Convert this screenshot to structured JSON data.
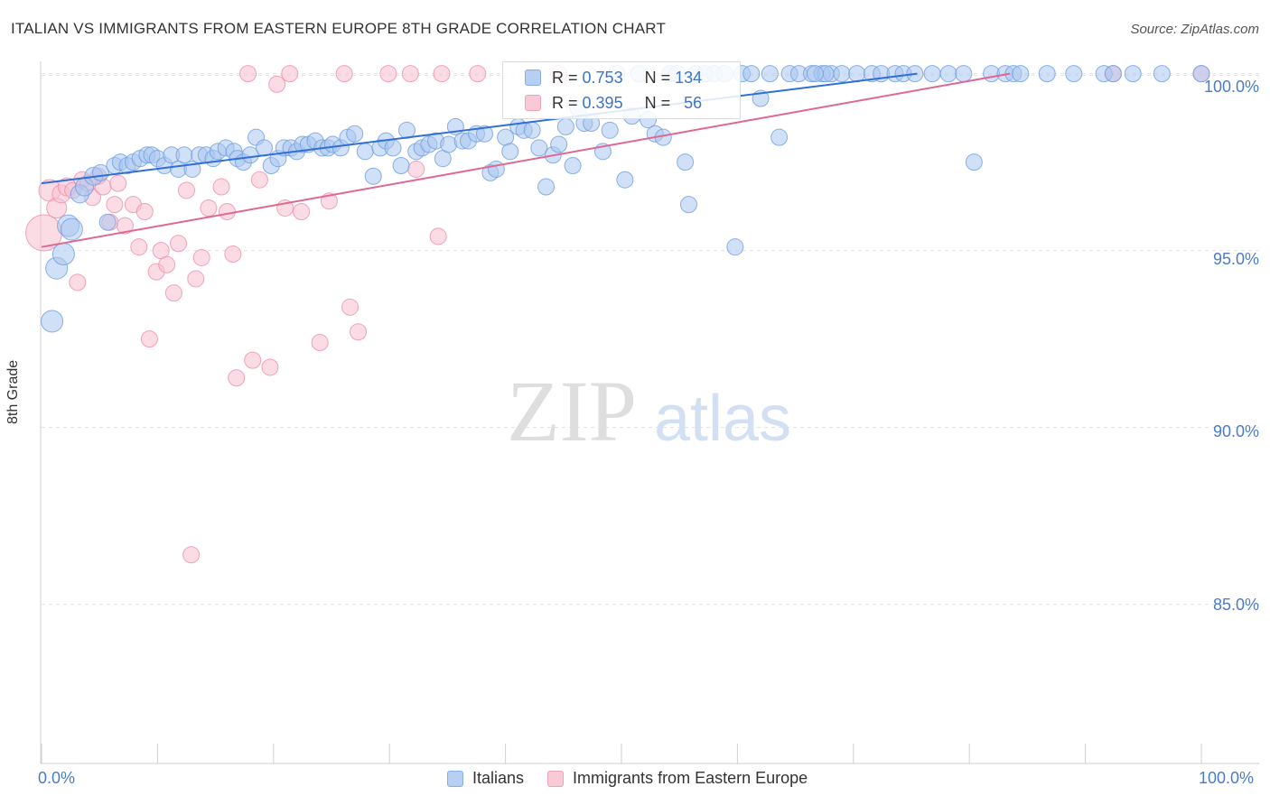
{
  "header": {
    "title": "ITALIAN VS IMMIGRANTS FROM EASTERN EUROPE 8TH GRADE CORRELATION CHART",
    "source": "Source: ZipAtlas.com"
  },
  "watermark": {
    "zip": "ZIP",
    "atlas": "atlas"
  },
  "stats": {
    "r_label": "R =",
    "n_label": "N =",
    "italians": {
      "r": "0.753",
      "n": "134"
    },
    "eastern_europe": {
      "r": "0.395",
      "n": "56"
    }
  },
  "colors": {
    "blue_fill": "#a9c6f0",
    "blue_stroke": "#6f9de0",
    "blue_line": "#2f6fd6",
    "pink_fill": "#f7bfd0",
    "pink_stroke": "#ec8fac",
    "pink_line": "#e0678f",
    "tick_text": "#4a7cc9"
  },
  "chart_data": {
    "type": "scatter",
    "title": "ITALIAN VS IMMIGRANTS FROM EASTERN EUROPE 8TH GRADE CORRELATION CHART",
    "xlabel": "",
    "ylabel": "8th Grade",
    "xlim": [
      0,
      100
    ],
    "ylim": [
      80.5,
      100.5
    ],
    "x_tick_labels": [
      "0.0%",
      "100.0%"
    ],
    "y_ticks": [
      {
        "value": 100,
        "label": "100.0%"
      },
      {
        "value": 95,
        "label": "95.0%"
      },
      {
        "value": 90,
        "label": "90.0%"
      },
      {
        "value": 85,
        "label": "85.0%"
      }
    ],
    "grid": true,
    "legend_position": "bottom",
    "series": [
      {
        "name": "Italians",
        "color": "blue",
        "trend": {
          "x": [
            0,
            75.5
          ],
          "y": [
            96.9,
            100.0
          ]
        },
        "points": [
          {
            "x": 0.9,
            "y": 93.0,
            "s": 12
          },
          {
            "x": 1.3,
            "y": 94.5,
            "s": 12
          },
          {
            "x": 1.9,
            "y": 94.9,
            "s": 12
          },
          {
            "x": 2.3,
            "y": 95.7,
            "s": 12
          },
          {
            "x": 2.6,
            "y": 95.6,
            "s": 12
          },
          {
            "x": 3.3,
            "y": 96.6,
            "s": 10
          },
          {
            "x": 3.7,
            "y": 96.8,
            "s": 10
          },
          {
            "x": 4.5,
            "y": 97.1,
            "s": 10
          },
          {
            "x": 5.1,
            "y": 97.2,
            "s": 9
          },
          {
            "x": 5.7,
            "y": 95.8,
            "s": 9
          },
          {
            "x": 6.3,
            "y": 97.4,
            "s": 9
          },
          {
            "x": 6.8,
            "y": 97.5,
            "s": 9
          },
          {
            "x": 7.4,
            "y": 97.4,
            "s": 9
          },
          {
            "x": 7.9,
            "y": 97.5,
            "s": 9
          },
          {
            "x": 8.5,
            "y": 97.6,
            "s": 9
          },
          {
            "x": 9.1,
            "y": 97.7,
            "s": 9
          },
          {
            "x": 9.5,
            "y": 97.7,
            "s": 9
          },
          {
            "x": 10.0,
            "y": 97.6,
            "s": 9
          },
          {
            "x": 10.6,
            "y": 97.4,
            "s": 9
          },
          {
            "x": 11.2,
            "y": 97.7,
            "s": 9
          },
          {
            "x": 11.8,
            "y": 97.3,
            "s": 9
          },
          {
            "x": 12.3,
            "y": 97.7,
            "s": 9
          },
          {
            "x": 13.0,
            "y": 97.3,
            "s": 9
          },
          {
            "x": 13.6,
            "y": 97.7,
            "s": 9
          },
          {
            "x": 14.2,
            "y": 97.7,
            "s": 9
          },
          {
            "x": 14.8,
            "y": 97.6,
            "s": 9
          },
          {
            "x": 15.2,
            "y": 97.8,
            "s": 9
          },
          {
            "x": 15.9,
            "y": 97.9,
            "s": 9
          },
          {
            "x": 16.6,
            "y": 97.8,
            "s": 9
          },
          {
            "x": 16.9,
            "y": 97.6,
            "s": 9
          },
          {
            "x": 17.4,
            "y": 97.5,
            "s": 9
          },
          {
            "x": 18.0,
            "y": 97.7,
            "s": 9
          },
          {
            "x": 18.5,
            "y": 98.2,
            "s": 9
          },
          {
            "x": 19.2,
            "y": 97.9,
            "s": 9
          },
          {
            "x": 19.8,
            "y": 97.4,
            "s": 9
          },
          {
            "x": 20.4,
            "y": 97.6,
            "s": 9
          },
          {
            "x": 20.9,
            "y": 97.9,
            "s": 9
          },
          {
            "x": 21.5,
            "y": 97.9,
            "s": 9
          },
          {
            "x": 22.0,
            "y": 97.8,
            "s": 9
          },
          {
            "x": 22.5,
            "y": 98.0,
            "s": 9
          },
          {
            "x": 23.0,
            "y": 98.0,
            "s": 9
          },
          {
            "x": 23.6,
            "y": 98.1,
            "s": 9
          },
          {
            "x": 24.2,
            "y": 97.9,
            "s": 9
          },
          {
            "x": 24.7,
            "y": 97.9,
            "s": 9
          },
          {
            "x": 25.1,
            "y": 98.0,
            "s": 9
          },
          {
            "x": 25.8,
            "y": 97.9,
            "s": 9
          },
          {
            "x": 26.4,
            "y": 98.2,
            "s": 9
          },
          {
            "x": 27.0,
            "y": 98.3,
            "s": 9
          },
          {
            "x": 27.9,
            "y": 97.8,
            "s": 9
          },
          {
            "x": 28.6,
            "y": 97.1,
            "s": 9
          },
          {
            "x": 29.2,
            "y": 97.9,
            "s": 9
          },
          {
            "x": 29.7,
            "y": 98.1,
            "s": 9
          },
          {
            "x": 30.3,
            "y": 97.9,
            "s": 9
          },
          {
            "x": 31.0,
            "y": 97.4,
            "s": 9
          },
          {
            "x": 31.5,
            "y": 98.4,
            "s": 9
          },
          {
            "x": 32.3,
            "y": 97.8,
            "s": 9
          },
          {
            "x": 32.8,
            "y": 97.9,
            "s": 9
          },
          {
            "x": 33.4,
            "y": 98.0,
            "s": 9
          },
          {
            "x": 34.0,
            "y": 98.1,
            "s": 9
          },
          {
            "x": 34.6,
            "y": 97.6,
            "s": 9
          },
          {
            "x": 35.1,
            "y": 98.0,
            "s": 9
          },
          {
            "x": 35.7,
            "y": 98.5,
            "s": 9
          },
          {
            "x": 36.3,
            "y": 98.1,
            "s": 9
          },
          {
            "x": 36.8,
            "y": 98.1,
            "s": 9
          },
          {
            "x": 37.5,
            "y": 98.3,
            "s": 9
          },
          {
            "x": 38.2,
            "y": 98.3,
            "s": 9
          },
          {
            "x": 38.7,
            "y": 97.2,
            "s": 9
          },
          {
            "x": 39.2,
            "y": 97.3,
            "s": 9
          },
          {
            "x": 40.0,
            "y": 98.2,
            "s": 9
          },
          {
            "x": 40.4,
            "y": 97.8,
            "s": 9
          },
          {
            "x": 41.1,
            "y": 98.5,
            "s": 9
          },
          {
            "x": 41.6,
            "y": 98.4,
            "s": 9
          },
          {
            "x": 42.3,
            "y": 98.4,
            "s": 9
          },
          {
            "x": 42.9,
            "y": 97.9,
            "s": 9
          },
          {
            "x": 43.5,
            "y": 96.8,
            "s": 9
          },
          {
            "x": 44.1,
            "y": 97.7,
            "s": 9
          },
          {
            "x": 44.6,
            "y": 98.0,
            "s": 9
          },
          {
            "x": 45.2,
            "y": 98.5,
            "s": 9
          },
          {
            "x": 45.8,
            "y": 97.4,
            "s": 9
          },
          {
            "x": 46.3,
            "y": 99.0,
            "s": 9
          },
          {
            "x": 46.8,
            "y": 98.6,
            "s": 9
          },
          {
            "x": 47.4,
            "y": 98.6,
            "s": 9
          },
          {
            "x": 48.4,
            "y": 97.8,
            "s": 9
          },
          {
            "x": 49.0,
            "y": 98.4,
            "s": 9
          },
          {
            "x": 49.6,
            "y": 100.0,
            "s": 9
          },
          {
            "x": 50.3,
            "y": 97.0,
            "s": 9
          },
          {
            "x": 50.9,
            "y": 98.8,
            "s": 9
          },
          {
            "x": 51.5,
            "y": 100.0,
            "s": 9
          },
          {
            "x": 52.3,
            "y": 98.7,
            "s": 9
          },
          {
            "x": 52.9,
            "y": 98.3,
            "s": 9
          },
          {
            "x": 53.6,
            "y": 98.2,
            "s": 9
          },
          {
            "x": 54.2,
            "y": 100.0,
            "s": 9
          },
          {
            "x": 54.8,
            "y": 100.0,
            "s": 9
          },
          {
            "x": 55.5,
            "y": 97.5,
            "s": 9
          },
          {
            "x": 55.8,
            "y": 96.3,
            "s": 9
          },
          {
            "x": 56.4,
            "y": 100.0,
            "s": 9
          },
          {
            "x": 57.2,
            "y": 100.0,
            "s": 9
          },
          {
            "x": 58.0,
            "y": 100.0,
            "s": 9
          },
          {
            "x": 58.9,
            "y": 100.0,
            "s": 9
          },
          {
            "x": 59.8,
            "y": 95.1,
            "s": 9
          },
          {
            "x": 60.4,
            "y": 100.0,
            "s": 9
          },
          {
            "x": 61.2,
            "y": 100.0,
            "s": 9
          },
          {
            "x": 62.0,
            "y": 99.3,
            "s": 9
          },
          {
            "x": 62.8,
            "y": 100.0,
            "s": 9
          },
          {
            "x": 63.6,
            "y": 98.2,
            "s": 9
          },
          {
            "x": 64.5,
            "y": 100.0,
            "s": 9
          },
          {
            "x": 65.3,
            "y": 100.0,
            "s": 9
          },
          {
            "x": 66.4,
            "y": 100.0,
            "s": 9
          },
          {
            "x": 67.3,
            "y": 100.0,
            "s": 9
          },
          {
            "x": 68.1,
            "y": 100.0,
            "s": 9
          },
          {
            "x": 69.0,
            "y": 100.0,
            "s": 9
          },
          {
            "x": 70.3,
            "y": 100.0,
            "s": 9
          },
          {
            "x": 71.6,
            "y": 100.0,
            "s": 9
          },
          {
            "x": 72.4,
            "y": 100.0,
            "s": 9
          },
          {
            "x": 73.6,
            "y": 100.0,
            "s": 9
          },
          {
            "x": 74.3,
            "y": 100.0,
            "s": 9
          },
          {
            "x": 75.3,
            "y": 100.0,
            "s": 9
          },
          {
            "x": 76.8,
            "y": 100.0,
            "s": 9
          },
          {
            "x": 78.2,
            "y": 100.0,
            "s": 9
          },
          {
            "x": 79.5,
            "y": 100.0,
            "s": 9
          },
          {
            "x": 80.4,
            "y": 97.5,
            "s": 9
          },
          {
            "x": 81.9,
            "y": 100.0,
            "s": 9
          },
          {
            "x": 83.1,
            "y": 100.0,
            "s": 9
          },
          {
            "x": 83.8,
            "y": 100.0,
            "s": 9
          },
          {
            "x": 84.4,
            "y": 100.0,
            "s": 9
          },
          {
            "x": 86.7,
            "y": 100.0,
            "s": 9
          },
          {
            "x": 89.0,
            "y": 100.0,
            "s": 9
          },
          {
            "x": 91.6,
            "y": 100.0,
            "s": 9
          },
          {
            "x": 92.4,
            "y": 100.0,
            "s": 9
          },
          {
            "x": 94.1,
            "y": 100.0,
            "s": 9
          },
          {
            "x": 96.6,
            "y": 100.0,
            "s": 9
          },
          {
            "x": 100.0,
            "y": 100.0,
            "s": 9
          },
          {
            "x": 67.6,
            "y": 100.0,
            "s": 9
          },
          {
            "x": 66.7,
            "y": 100.0,
            "s": 9
          }
        ]
      },
      {
        "name": "Immigrants from Eastern Europe",
        "color": "pink",
        "trend": {
          "x": [
            0,
            83.5
          ],
          "y": [
            95.1,
            100.0
          ]
        },
        "points": [
          {
            "x": 0.2,
            "y": 95.5,
            "s": 20
          },
          {
            "x": 0.7,
            "y": 96.7,
            "s": 12
          },
          {
            "x": 1.3,
            "y": 96.2,
            "s": 11
          },
          {
            "x": 1.7,
            "y": 96.6,
            "s": 10
          },
          {
            "x": 2.2,
            "y": 96.8,
            "s": 10
          },
          {
            "x": 2.7,
            "y": 96.7,
            "s": 9
          },
          {
            "x": 3.1,
            "y": 94.1,
            "s": 9
          },
          {
            "x": 3.5,
            "y": 97.0,
            "s": 9
          },
          {
            "x": 4.0,
            "y": 96.9,
            "s": 9
          },
          {
            "x": 4.4,
            "y": 96.5,
            "s": 9
          },
          {
            "x": 4.9,
            "y": 97.1,
            "s": 9
          },
          {
            "x": 5.3,
            "y": 96.8,
            "s": 9
          },
          {
            "x": 5.9,
            "y": 95.8,
            "s": 9
          },
          {
            "x": 6.3,
            "y": 96.3,
            "s": 9
          },
          {
            "x": 6.6,
            "y": 96.9,
            "s": 9
          },
          {
            "x": 7.2,
            "y": 95.7,
            "s": 9
          },
          {
            "x": 7.9,
            "y": 96.3,
            "s": 9
          },
          {
            "x": 8.4,
            "y": 95.1,
            "s": 9
          },
          {
            "x": 8.9,
            "y": 96.1,
            "s": 9
          },
          {
            "x": 9.3,
            "y": 92.5,
            "s": 9
          },
          {
            "x": 9.9,
            "y": 94.4,
            "s": 9
          },
          {
            "x": 10.3,
            "y": 95.0,
            "s": 9
          },
          {
            "x": 10.8,
            "y": 94.6,
            "s": 9
          },
          {
            "x": 11.4,
            "y": 93.8,
            "s": 9
          },
          {
            "x": 11.8,
            "y": 95.2,
            "s": 9
          },
          {
            "x": 12.5,
            "y": 96.7,
            "s": 9
          },
          {
            "x": 12.9,
            "y": 86.4,
            "s": 9
          },
          {
            "x": 13.3,
            "y": 94.2,
            "s": 9
          },
          {
            "x": 13.8,
            "y": 94.8,
            "s": 9
          },
          {
            "x": 14.4,
            "y": 96.2,
            "s": 9
          },
          {
            "x": 15.5,
            "y": 96.8,
            "s": 9
          },
          {
            "x": 16.0,
            "y": 96.1,
            "s": 9
          },
          {
            "x": 16.5,
            "y": 94.9,
            "s": 9
          },
          {
            "x": 16.8,
            "y": 91.4,
            "s": 9
          },
          {
            "x": 17.8,
            "y": 100.0,
            "s": 9
          },
          {
            "x": 18.2,
            "y": 91.9,
            "s": 9
          },
          {
            "x": 18.8,
            "y": 97.0,
            "s": 9
          },
          {
            "x": 19.7,
            "y": 91.7,
            "s": 9
          },
          {
            "x": 20.3,
            "y": 99.7,
            "s": 9
          },
          {
            "x": 21.0,
            "y": 96.2,
            "s": 9
          },
          {
            "x": 21.4,
            "y": 100.0,
            "s": 9
          },
          {
            "x": 22.4,
            "y": 96.1,
            "s": 9
          },
          {
            "x": 24.0,
            "y": 92.4,
            "s": 9
          },
          {
            "x": 24.8,
            "y": 96.4,
            "s": 9
          },
          {
            "x": 26.1,
            "y": 100.0,
            "s": 9
          },
          {
            "x": 26.6,
            "y": 93.4,
            "s": 9
          },
          {
            "x": 27.3,
            "y": 92.7,
            "s": 9
          },
          {
            "x": 29.9,
            "y": 100.0,
            "s": 9
          },
          {
            "x": 31.8,
            "y": 100.0,
            "s": 9
          },
          {
            "x": 32.3,
            "y": 97.3,
            "s": 9
          },
          {
            "x": 34.2,
            "y": 95.4,
            "s": 9
          },
          {
            "x": 37.6,
            "y": 100.0,
            "s": 9
          },
          {
            "x": 44.6,
            "y": 100.0,
            "s": 9
          },
          {
            "x": 92.4,
            "y": 100.0,
            "s": 9
          },
          {
            "x": 100.0,
            "y": 100.0,
            "s": 9
          },
          {
            "x": 34.5,
            "y": 100.0,
            "s": 9
          }
        ]
      }
    ]
  },
  "legend": {
    "italians": "Italians",
    "eastern_europe": "Immigrants from Eastern Europe"
  }
}
